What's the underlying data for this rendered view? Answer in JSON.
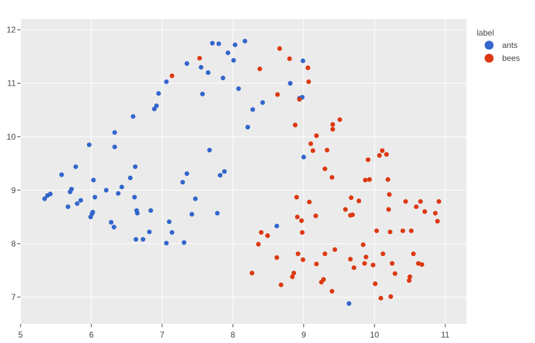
{
  "chart_data": {
    "type": "scatter",
    "title": "",
    "xlabel": "",
    "ylabel": "",
    "xlim": [
      5,
      11.3
    ],
    "ylim": [
      6.5,
      12.2
    ],
    "x_ticks": [
      5,
      6,
      7,
      8,
      9,
      10,
      11
    ],
    "y_ticks": [
      7,
      8,
      9,
      10,
      11,
      12
    ],
    "grid": true,
    "legend": {
      "title": "label",
      "placement": "top-right"
    },
    "background": "#ebebeb",
    "series": [
      {
        "name": "ants",
        "color": "#3366cc",
        "points": [
          [
            5.34,
            8.84
          ],
          [
            5.38,
            8.9
          ],
          [
            5.42,
            8.93
          ],
          [
            5.58,
            9.29
          ],
          [
            5.67,
            8.69
          ],
          [
            5.7,
            8.97
          ],
          [
            5.72,
            9.02
          ],
          [
            5.78,
            9.44
          ],
          [
            5.8,
            8.75
          ],
          [
            5.85,
            8.81
          ],
          [
            5.97,
            9.85
          ],
          [
            5.99,
            8.5
          ],
          [
            6.01,
            8.56
          ],
          [
            6.02,
            8.59
          ],
          [
            6.03,
            9.19
          ],
          [
            6.05,
            8.87
          ],
          [
            6.21,
            9.0
          ],
          [
            6.28,
            8.4
          ],
          [
            6.32,
            8.31
          ],
          [
            6.33,
            9.81
          ],
          [
            6.33,
            10.08
          ],
          [
            6.38,
            8.94
          ],
          [
            6.43,
            9.06
          ],
          [
            6.55,
            9.23
          ],
          [
            6.59,
            10.38
          ],
          [
            6.61,
            8.87
          ],
          [
            6.62,
            9.44
          ],
          [
            6.63,
            8.08
          ],
          [
            6.64,
            8.62
          ],
          [
            6.65,
            8.57
          ],
          [
            6.73,
            8.08
          ],
          [
            6.82,
            8.22
          ],
          [
            6.84,
            8.62
          ],
          [
            6.89,
            10.52
          ],
          [
            6.92,
            10.58
          ],
          [
            6.95,
            10.81
          ],
          [
            7.06,
            8.01
          ],
          [
            7.06,
            11.03
          ],
          [
            7.1,
            8.41
          ],
          [
            7.14,
            8.21
          ],
          [
            7.29,
            9.15
          ],
          [
            7.31,
            8.02
          ],
          [
            7.35,
            9.31
          ],
          [
            7.35,
            11.37
          ],
          [
            7.42,
            8.55
          ],
          [
            7.47,
            8.84
          ],
          [
            7.55,
            11.3
          ],
          [
            7.57,
            10.8
          ],
          [
            7.65,
            11.2
          ],
          [
            7.67,
            9.75
          ],
          [
            7.71,
            11.75
          ],
          [
            7.78,
            8.57
          ],
          [
            7.8,
            11.74
          ],
          [
            7.82,
            9.28
          ],
          [
            7.86,
            11.1
          ],
          [
            7.88,
            9.35
          ],
          [
            7.93,
            11.57
          ],
          [
            8.01,
            11.43
          ],
          [
            8.03,
            11.72
          ],
          [
            8.08,
            10.9
          ],
          [
            8.17,
            11.79
          ],
          [
            8.21,
            10.18
          ],
          [
            8.28,
            10.51
          ],
          [
            8.42,
            10.64
          ],
          [
            8.62,
            8.33
          ],
          [
            8.81,
            11.0
          ],
          [
            8.94,
            10.72
          ],
          [
            8.98,
            10.74
          ],
          [
            8.99,
            11.42
          ],
          [
            9.0,
            9.62
          ],
          [
            9.64,
            6.88
          ]
        ]
      },
      {
        "name": "bees",
        "color": "#dc3912",
        "points": [
          [
            7.14,
            11.14
          ],
          [
            7.53,
            11.47
          ],
          [
            8.27,
            7.45
          ],
          [
            8.36,
            7.99
          ],
          [
            8.38,
            11.27
          ],
          [
            8.4,
            8.21
          ],
          [
            8.49,
            8.15
          ],
          [
            8.62,
            7.74
          ],
          [
            8.63,
            10.79
          ],
          [
            8.66,
            11.65
          ],
          [
            8.68,
            7.23
          ],
          [
            8.8,
            11.46
          ],
          [
            8.84,
            7.38
          ],
          [
            8.86,
            7.45
          ],
          [
            8.88,
            10.22
          ],
          [
            8.9,
            8.87
          ],
          [
            8.91,
            8.5
          ],
          [
            8.92,
            7.81
          ],
          [
            8.94,
            10.7
          ],
          [
            8.97,
            8.43
          ],
          [
            8.98,
            8.21
          ],
          [
            8.99,
            7.7
          ],
          [
            9.06,
            11.29
          ],
          [
            9.07,
            11.03
          ],
          [
            9.08,
            8.78
          ],
          [
            9.1,
            9.87
          ],
          [
            9.13,
            9.74
          ],
          [
            9.17,
            8.52
          ],
          [
            9.18,
            10.02
          ],
          [
            9.18,
            7.62
          ],
          [
            9.25,
            7.28
          ],
          [
            9.28,
            7.33
          ],
          [
            9.3,
            7.81
          ],
          [
            9.3,
            9.4
          ],
          [
            9.33,
            9.75
          ],
          [
            9.4,
            9.24
          ],
          [
            9.4,
            7.11
          ],
          [
            9.41,
            10.14
          ],
          [
            9.41,
            10.23
          ],
          [
            9.44,
            7.89
          ],
          [
            9.51,
            10.32
          ],
          [
            9.59,
            8.64
          ],
          [
            9.66,
            8.53
          ],
          [
            9.66,
            7.71
          ],
          [
            9.67,
            8.86
          ],
          [
            9.69,
            8.54
          ],
          [
            9.71,
            7.55
          ],
          [
            9.78,
            8.8
          ],
          [
            9.84,
            7.98
          ],
          [
            9.86,
            7.63
          ],
          [
            9.87,
            9.19
          ],
          [
            9.88,
            7.75
          ],
          [
            9.91,
            9.57
          ],
          [
            9.93,
            9.2
          ],
          [
            9.98,
            7.6
          ],
          [
            10.01,
            7.25
          ],
          [
            10.03,
            8.24
          ],
          [
            10.07,
            9.65
          ],
          [
            10.09,
            6.98
          ],
          [
            10.11,
            9.74
          ],
          [
            10.12,
            7.81
          ],
          [
            10.17,
            9.67
          ],
          [
            10.19,
            9.2
          ],
          [
            10.2,
            8.64
          ],
          [
            10.21,
            8.92
          ],
          [
            10.22,
            8.22
          ],
          [
            10.23,
            7.01
          ],
          [
            10.25,
            7.63
          ],
          [
            10.29,
            7.44
          ],
          [
            10.4,
            8.24
          ],
          [
            10.44,
            8.79
          ],
          [
            10.49,
            7.31
          ],
          [
            10.5,
            7.38
          ],
          [
            10.52,
            8.24
          ],
          [
            10.55,
            7.81
          ],
          [
            10.59,
            8.69
          ],
          [
            10.62,
            7.63
          ],
          [
            10.65,
            8.79
          ],
          [
            10.67,
            7.61
          ],
          [
            10.71,
            8.6
          ],
          [
            10.86,
            8.57
          ],
          [
            10.89,
            8.42
          ],
          [
            10.91,
            8.79
          ]
        ]
      }
    ]
  }
}
